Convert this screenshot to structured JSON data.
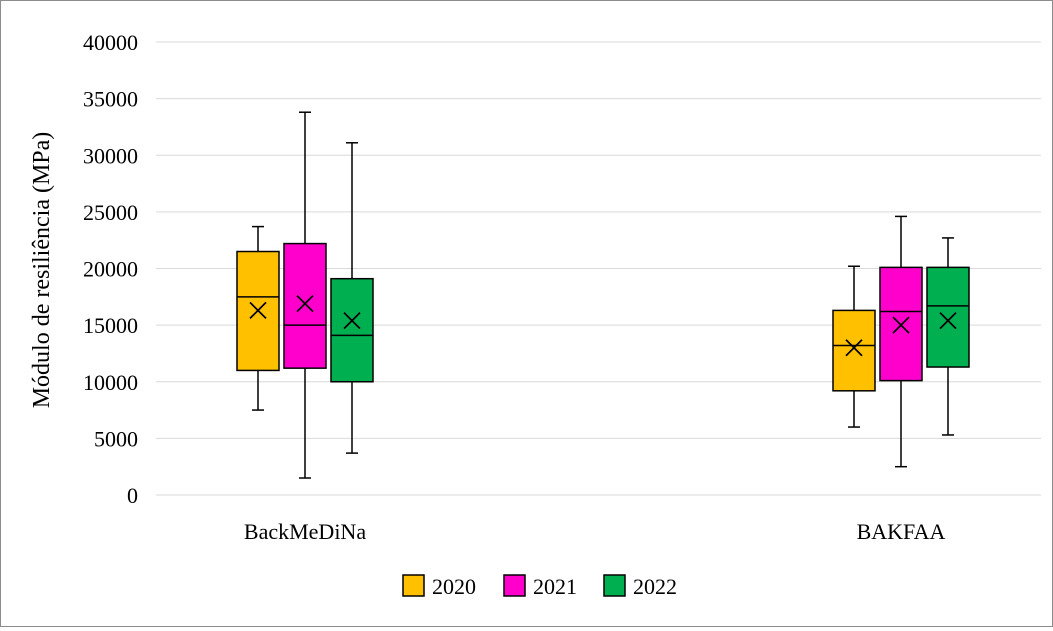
{
  "chart_data": {
    "type": "boxplot",
    "title": "",
    "xlabel": "",
    "ylabel": "Módulo de resiliência  (MPa)",
    "ylim": [
      0,
      40000
    ],
    "yticks": [
      0,
      5000,
      10000,
      15000,
      20000,
      25000,
      30000,
      35000,
      40000
    ],
    "grid": true,
    "legend_position": "bottom",
    "categories": [
      "BackMeDiNa",
      "BAKFAA"
    ],
    "series": [
      {
        "name": "2020",
        "color": "#FFC000",
        "boxes": [
          {
            "min": 7500,
            "q1": 11000,
            "median": 17500,
            "q3": 21500,
            "max": 23700,
            "mean": 16300
          },
          {
            "min": 6000,
            "q1": 9200,
            "median": 13200,
            "q3": 16300,
            "max": 20200,
            "mean": 13000
          }
        ]
      },
      {
        "name": "2021",
        "color": "#FF00CC",
        "boxes": [
          {
            "min": 1500,
            "q1": 11200,
            "median": 15000,
            "q3": 22200,
            "max": 33800,
            "mean": 16900
          },
          {
            "min": 2500,
            "q1": 10100,
            "median": 16200,
            "q3": 20100,
            "max": 24600,
            "mean": 15000
          }
        ]
      },
      {
        "name": "2022",
        "color": "#00B050",
        "boxes": [
          {
            "min": 3700,
            "q1": 10000,
            "median": 14100,
            "q3": 19100,
            "max": 31100,
            "mean": 15400
          },
          {
            "min": 5300,
            "q1": 11300,
            "median": 16700,
            "q3": 20100,
            "max": 22700,
            "mean": 15400
          }
        ]
      }
    ]
  }
}
